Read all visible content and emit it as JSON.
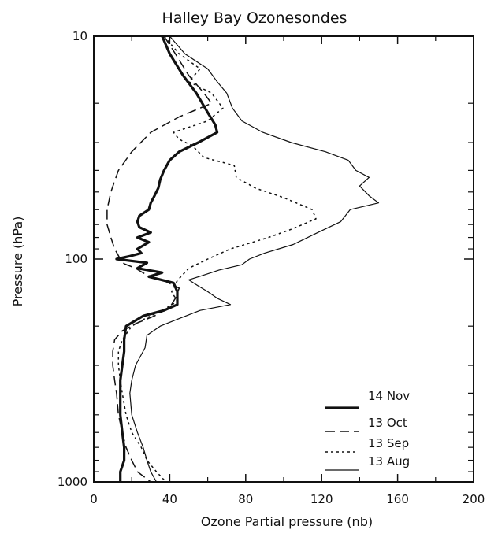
{
  "chart_data": {
    "type": "line",
    "title": "Halley Bay Ozonesondes",
    "xlabel": "Ozone Partial pressure (nb)",
    "ylabel": "Pressure (hPa)",
    "xlim": [
      0,
      200
    ],
    "ylim": [
      1000,
      10
    ],
    "y_scale": "log",
    "x_ticks": [
      0,
      40,
      80,
      120,
      160,
      200
    ],
    "x_tick_labels": [
      "0",
      "40",
      "80",
      "120",
      "160",
      "200"
    ],
    "y_ticks": [
      10,
      100,
      1000
    ],
    "y_tick_labels": [
      "10",
      "100",
      "1000"
    ],
    "legend_position": "bottom-right",
    "series": [
      {
        "name": "14 Nov",
        "style": "thick-solid",
        "points": [
          [
            36,
            10
          ],
          [
            40,
            12
          ],
          [
            47,
            15
          ],
          [
            54,
            18
          ],
          [
            60,
            22
          ],
          [
            64,
            25
          ],
          [
            65,
            27
          ],
          [
            55,
            30
          ],
          [
            45,
            33
          ],
          [
            40,
            36
          ],
          [
            37,
            40
          ],
          [
            35,
            44
          ],
          [
            34,
            48
          ],
          [
            32,
            52
          ],
          [
            30,
            56
          ],
          [
            29,
            60
          ],
          [
            24,
            64
          ],
          [
            23,
            68
          ],
          [
            24,
            72
          ],
          [
            30,
            76
          ],
          [
            23,
            80
          ],
          [
            29,
            84
          ],
          [
            23,
            90
          ],
          [
            25,
            94
          ],
          [
            19,
            97
          ],
          [
            12,
            100
          ],
          [
            28,
            104
          ],
          [
            23,
            110
          ],
          [
            36,
            115
          ],
          [
            29,
            120
          ],
          [
            42,
            128
          ],
          [
            44,
            140
          ],
          [
            44,
            160
          ],
          [
            37,
            170
          ],
          [
            26,
            180
          ],
          [
            17,
            200
          ],
          [
            16,
            230
          ],
          [
            16,
            260
          ],
          [
            15,
            300
          ],
          [
            14,
            350
          ],
          [
            14,
            400
          ],
          [
            14,
            500
          ],
          [
            15,
            600
          ],
          [
            16,
            700
          ],
          [
            16,
            800
          ],
          [
            14,
            900
          ],
          [
            14,
            1000
          ]
        ]
      },
      {
        "name": "13 Oct",
        "style": "long-dash",
        "points": [
          [
            37,
            10
          ],
          [
            43,
            12
          ],
          [
            50,
            15
          ],
          [
            58,
            18
          ],
          [
            62,
            20
          ],
          [
            45,
            23
          ],
          [
            30,
            27
          ],
          [
            20,
            33
          ],
          [
            13,
            40
          ],
          [
            9,
            50
          ],
          [
            7,
            60
          ],
          [
            7,
            70
          ],
          [
            9,
            80
          ],
          [
            11,
            90
          ],
          [
            14,
            100
          ],
          [
            16,
            105
          ],
          [
            22,
            110
          ],
          [
            28,
            118
          ],
          [
            37,
            125
          ],
          [
            45,
            135
          ],
          [
            43,
            150
          ],
          [
            40,
            165
          ],
          [
            32,
            180
          ],
          [
            22,
            195
          ],
          [
            15,
            210
          ],
          [
            11,
            230
          ],
          [
            10,
            260
          ],
          [
            10,
            300
          ],
          [
            11,
            350
          ],
          [
            12,
            400
          ],
          [
            13,
            500
          ],
          [
            15,
            600
          ],
          [
            17,
            700
          ],
          [
            20,
            800
          ],
          [
            23,
            900
          ],
          [
            30,
            1000
          ]
        ]
      },
      {
        "name": "13 Sep",
        "style": "short-dash",
        "points": [
          [
            37,
            10
          ],
          [
            45,
            12
          ],
          [
            56,
            14
          ],
          [
            50,
            16
          ],
          [
            62,
            18
          ],
          [
            68,
            21
          ],
          [
            60,
            24
          ],
          [
            42,
            27
          ],
          [
            45,
            29
          ],
          [
            52,
            31
          ],
          [
            58,
            35
          ],
          [
            74,
            38
          ],
          [
            75,
            43
          ],
          [
            85,
            48
          ],
          [
            100,
            53
          ],
          [
            115,
            60
          ],
          [
            117,
            66
          ],
          [
            105,
            73
          ],
          [
            92,
            80
          ],
          [
            72,
            90
          ],
          [
            60,
            100
          ],
          [
            50,
            110
          ],
          [
            44,
            125
          ],
          [
            41,
            140
          ],
          [
            44,
            155
          ],
          [
            36,
            170
          ],
          [
            27,
            185
          ],
          [
            20,
            200
          ],
          [
            15,
            230
          ],
          [
            13,
            260
          ],
          [
            13,
            300
          ],
          [
            14,
            350
          ],
          [
            15,
            400
          ],
          [
            17,
            500
          ],
          [
            20,
            600
          ],
          [
            25,
            700
          ],
          [
            28,
            800
          ],
          [
            33,
            900
          ],
          [
            38,
            1000
          ]
        ]
      },
      {
        "name": "13 Aug",
        "style": "thin-solid",
        "points": [
          [
            40,
            10
          ],
          [
            48,
            12
          ],
          [
            60,
            14
          ],
          [
            65,
            16
          ],
          [
            70,
            18
          ],
          [
            73,
            21
          ],
          [
            78,
            24
          ],
          [
            89,
            27
          ],
          [
            104,
            30
          ],
          [
            122,
            33
          ],
          [
            134,
            36
          ],
          [
            138,
            40
          ],
          [
            145,
            43
          ],
          [
            140,
            47
          ],
          [
            145,
            52
          ],
          [
            150,
            56
          ],
          [
            135,
            60
          ],
          [
            130,
            68
          ],
          [
            118,
            76
          ],
          [
            105,
            86
          ],
          [
            90,
            94
          ],
          [
            82,
            100
          ],
          [
            78,
            106
          ],
          [
            66,
            112
          ],
          [
            58,
            118
          ],
          [
            50,
            124
          ],
          [
            55,
            132
          ],
          [
            60,
            140
          ],
          [
            65,
            150
          ],
          [
            72,
            160
          ],
          [
            56,
            170
          ],
          [
            45,
            185
          ],
          [
            35,
            200
          ],
          [
            28,
            220
          ],
          [
            27,
            250
          ],
          [
            22,
            300
          ],
          [
            20,
            350
          ],
          [
            19,
            400
          ],
          [
            20,
            500
          ],
          [
            23,
            600
          ],
          [
            26,
            700
          ],
          [
            28,
            800
          ],
          [
            30,
            900
          ],
          [
            33,
            1000
          ]
        ]
      }
    ],
    "legend": [
      {
        "label": "14 Nov",
        "style": "thick-solid"
      },
      {
        "label": "13 Oct",
        "style": "long-dash"
      },
      {
        "label": "13 Sep",
        "style": "short-dash"
      },
      {
        "label": "13 Aug",
        "style": "thin-solid"
      }
    ]
  }
}
